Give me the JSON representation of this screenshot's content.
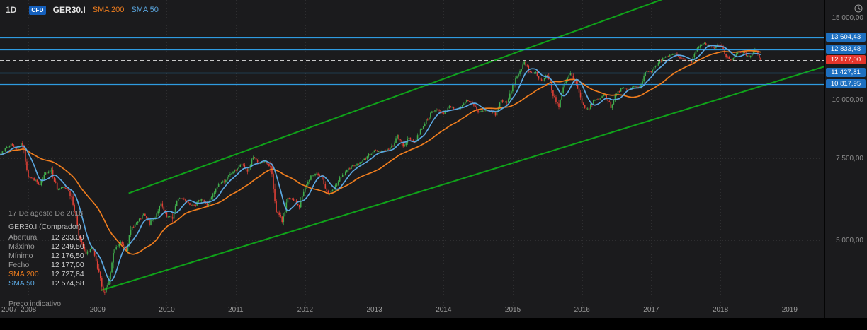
{
  "toolbar": {
    "timeframe": "1D",
    "instrument_badge": "CFD",
    "symbol": "GER30.I",
    "sma200_label": "SMA 200",
    "sma50_label": "SMA 50"
  },
  "tooltip": {
    "date": "17 De agosto De 2018",
    "title": "GER30.I (Comprador)",
    "rows": [
      {
        "label": "Abertura",
        "value": "12 233,00"
      },
      {
        "label": "Máximo",
        "value": "12 249,50"
      },
      {
        "label": "Mínimo",
        "value": "12 176,50"
      },
      {
        "label": "Fecho",
        "value": "12 177,00"
      },
      {
        "label": "SMA 200",
        "value": "12 727,84"
      },
      {
        "label": "SMA 50",
        "value": "12 574,58"
      }
    ],
    "footnote": "Preço indicativo"
  },
  "icons": {
    "top_right": "clock-icon"
  },
  "colors": {
    "background": "#1b1b1d",
    "up": "#3fae4c",
    "down": "#e14036",
    "sma200": "#ef7d1e",
    "sma50": "#5aa7e0",
    "trend": "#0fa319",
    "level_blue": "#2f9be0",
    "badge_blue": "#1d6fc0",
    "badge_red": "#e5352b",
    "current_dash": "#c9c9c9",
    "grid": "#2e2e30"
  },
  "chart_data": {
    "type": "candlestick",
    "instrument": "GER30.I",
    "timeframe": "1D",
    "y_scale": "log",
    "x_range": [
      2007.5,
      2019.6
    ],
    "grid": true,
    "x_axis_years": [
      2007,
      2008,
      2009,
      2010,
      2011,
      2012,
      2013,
      2014,
      2015,
      2016,
      2017,
      2018,
      2019
    ],
    "y_axis_ticks": [
      {
        "price": 15000,
        "label": "15 000,00"
      },
      {
        "price": 10000,
        "label": "10 000,00"
      },
      {
        "price": 7500,
        "label": "7 500,00"
      },
      {
        "price": 5000,
        "label": "5 000,00"
      }
    ],
    "monthly_closes": {
      "start_year": 2007,
      "start_month": 7,
      "values": [
        7584,
        7638,
        7861,
        8019,
        7870,
        8067,
        6851,
        6748,
        6535,
        6948,
        7096,
        6418,
        6479,
        6422,
        5831,
        4988,
        4669,
        4810,
        4338,
        3844,
        4085,
        4769,
        4941,
        4809,
        5332,
        5465,
        5675,
        5415,
        5626,
        5957,
        5609,
        5598,
        6154,
        6136,
        5964,
        5966,
        6148,
        5925,
        6229,
        6601,
        6688,
        6914,
        7077,
        7272,
        7041,
        7514,
        7293,
        7376,
        7159,
        5785,
        5502,
        6141,
        6088,
        5898,
        6459,
        6856,
        6947,
        6761,
        6264,
        6416,
        6772,
        6971,
        7216,
        7260,
        7406,
        7612,
        7776,
        7741,
        7795,
        7914,
        8349,
        7959,
        8276,
        8103,
        8594,
        9034,
        9405,
        9552,
        9306,
        9692,
        9556,
        9603,
        9943,
        9833,
        9407,
        9470,
        9474,
        9327,
        9981,
        9806,
        10694,
        11402,
        11966,
        11454,
        11414,
        10945,
        11309,
        10259,
        9660,
        10850,
        11382,
        10743,
        9798,
        9495,
        9966,
        10039,
        10263,
        9680,
        10338,
        10593,
        10511,
        10665,
        10640,
        11481,
        11535,
        11834,
        12313,
        12438,
        12615,
        12325,
        12118,
        12056,
        12829,
        13230,
        13024,
        12918,
        13189,
        12436,
        12097,
        12612,
        12605,
        12306,
        12806,
        12177
      ]
    },
    "last_bar": {
      "date": "17 De agosto De 2018",
      "open": 12233.0,
      "high": 12249.5,
      "low": 12176.5,
      "close": 12177.0
    },
    "overlays": [
      {
        "name": "SMA 200",
        "window_days": 200,
        "last_value": 12727.84,
        "color": "#ef7d1e"
      },
      {
        "name": "SMA 50",
        "window_days": 50,
        "last_value": 12574.58,
        "color": "#5aa7e0"
      }
    ],
    "trendlines": [
      {
        "points": [
          [
            2009.05,
            3900
          ],
          [
            2019.6,
            11900
          ]
        ],
        "style": "solid-green"
      },
      {
        "points": [
          [
            2009.45,
            6300
          ],
          [
            2017.35,
            16800
          ]
        ],
        "style": "solid-green"
      }
    ],
    "levels": [
      {
        "price": 13604.43,
        "label": "13 604,43",
        "badge": "blue",
        "style": "solid-blue"
      },
      {
        "price": 12833.48,
        "label": "12 833,48",
        "badge": "blue",
        "style": "solid-blue"
      },
      {
        "price": 12177.0,
        "label": "12 177,00",
        "badge": "red",
        "style": "dashed-current"
      },
      {
        "price": 11427.81,
        "label": "11 427,81",
        "badge": "blue",
        "style": "solid-blue"
      },
      {
        "price": 10817.95,
        "label": "10 817,95",
        "badge": "blue",
        "style": "solid-blue"
      }
    ],
    "current_price": 12177.0
  }
}
